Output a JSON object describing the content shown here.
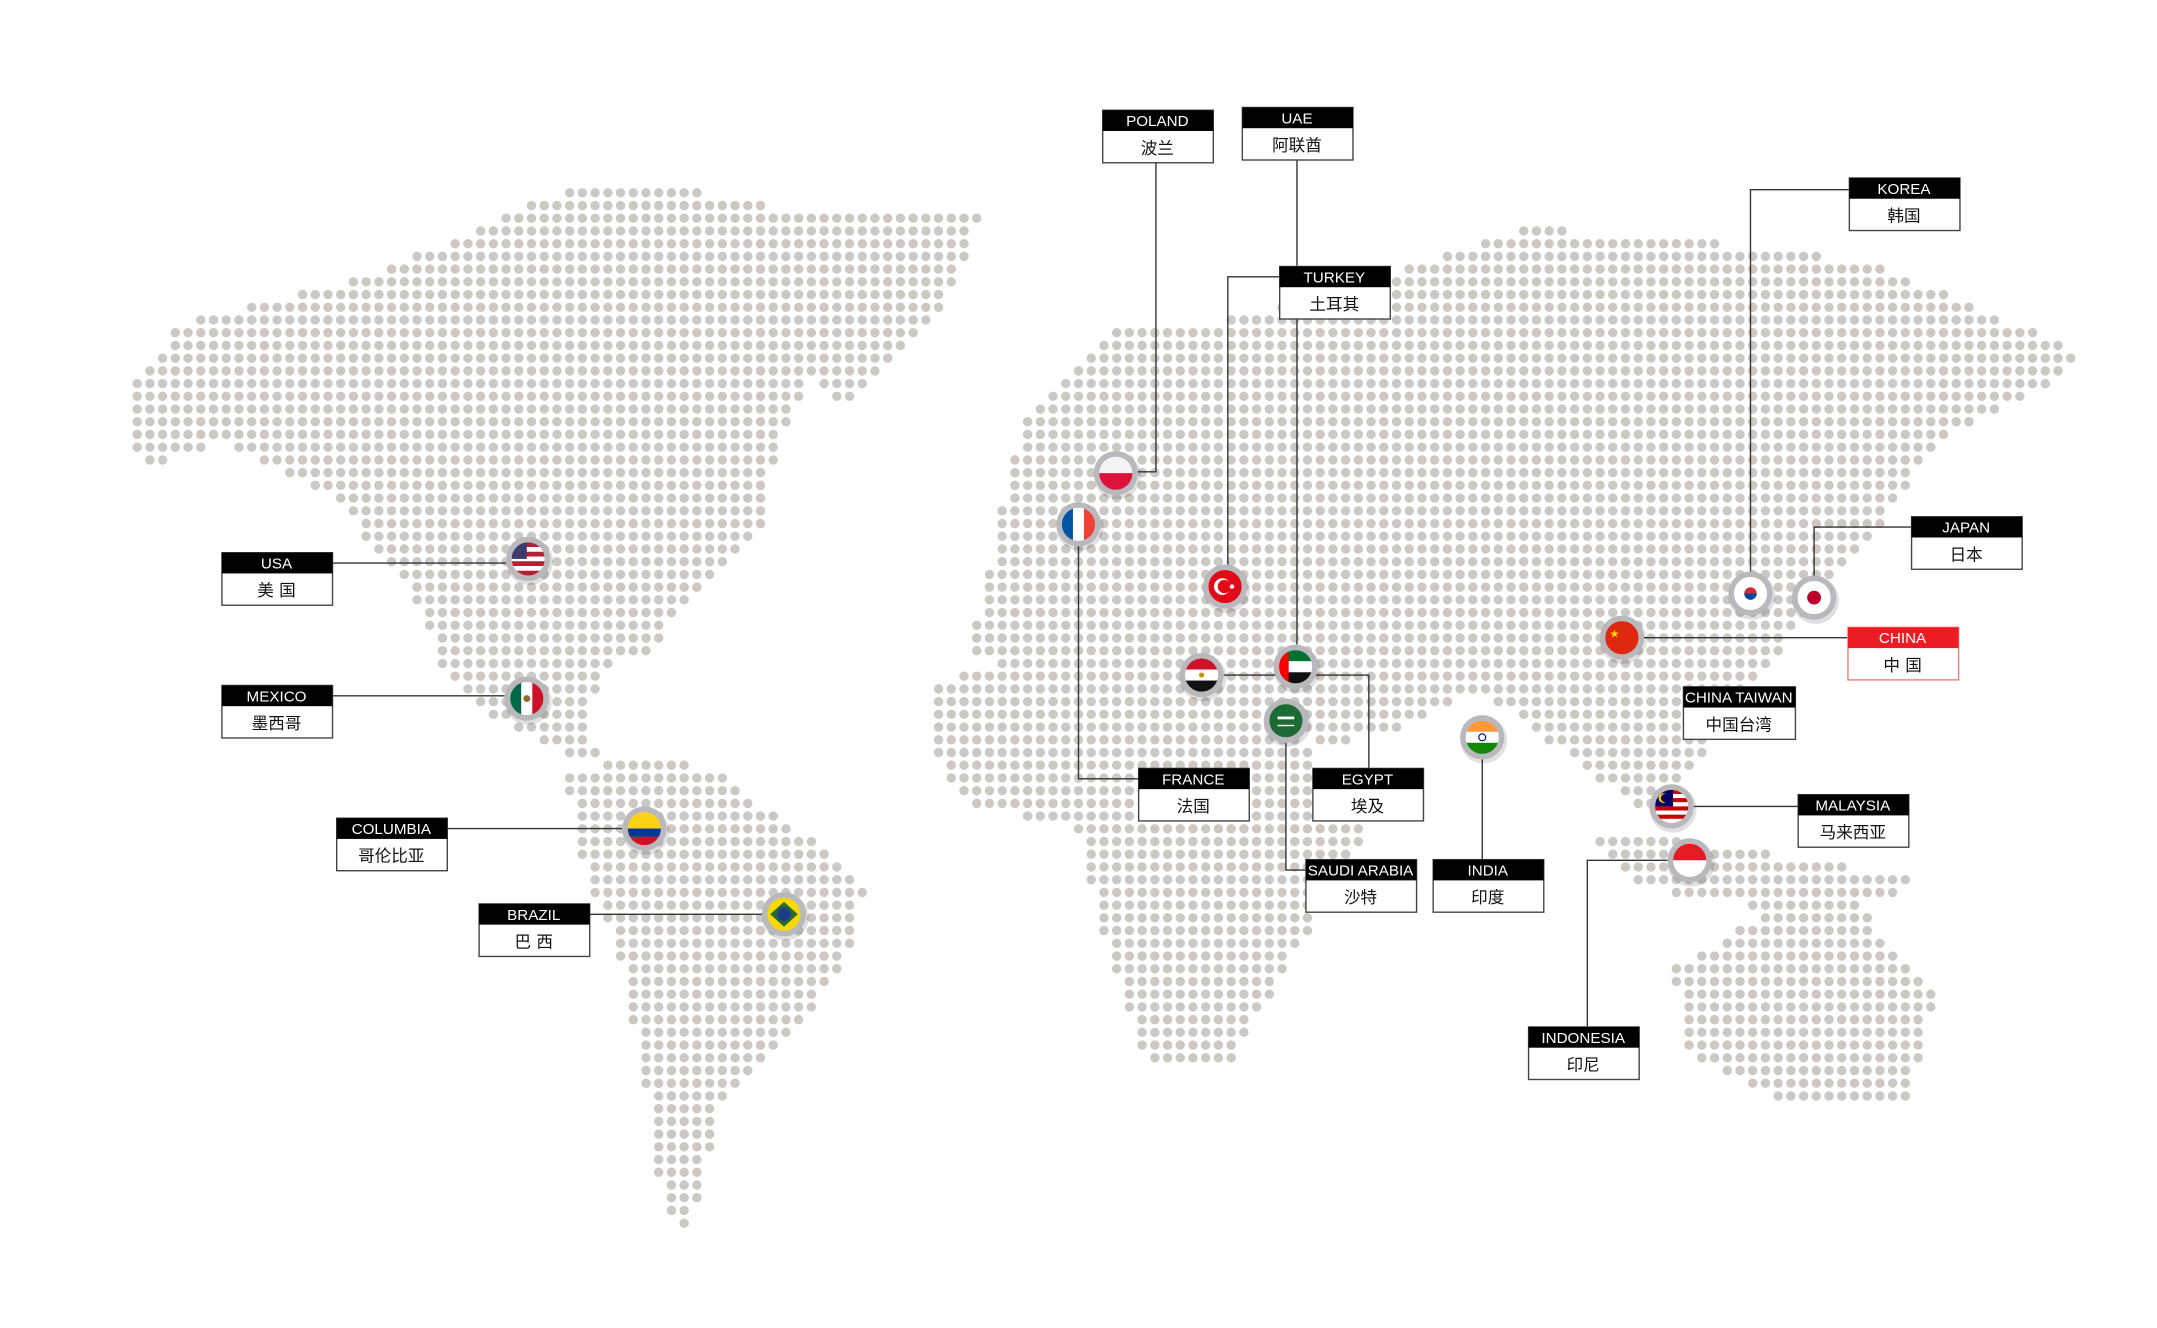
{
  "map": {
    "dot_color": "#ccc8c4",
    "line_color": "#333333",
    "highlight_color": "#ed1c24",
    "locations": [
      {
        "id": "usa",
        "name_en": "USA",
        "name_zh": "美 国",
        "flag": "usa-flag-icon"
      },
      {
        "id": "mexico",
        "name_en": "MEXICO",
        "name_zh": "墨西哥",
        "flag": "mexico-flag-icon"
      },
      {
        "id": "columbia",
        "name_en": "COLUMBIA",
        "name_zh": "哥伦比亚",
        "flag": "colombia-flag-icon"
      },
      {
        "id": "brazil",
        "name_en": "BRAZIL",
        "name_zh": "巴 西",
        "flag": "brazil-flag-icon"
      },
      {
        "id": "poland",
        "name_en": "POLAND",
        "name_zh": "波兰",
        "flag": "poland-flag-icon"
      },
      {
        "id": "uae",
        "name_en": "UAE",
        "name_zh": "阿联酋",
        "flag": "uae-flag-icon"
      },
      {
        "id": "turkey",
        "name_en": "TURKEY",
        "name_zh": "土耳其",
        "flag": "turkey-flag-icon"
      },
      {
        "id": "france",
        "name_en": "FRANCE",
        "name_zh": "法国",
        "flag": "france-flag-icon"
      },
      {
        "id": "egypt",
        "name_en": "EGYPT",
        "name_zh": "埃及",
        "flag": "egypt-flag-icon"
      },
      {
        "id": "saudi",
        "name_en": "SAUDI ARABIA",
        "name_zh": "沙特",
        "flag": "saudi-flag-icon"
      },
      {
        "id": "india",
        "name_en": "INDIA",
        "name_zh": "印度",
        "flag": "india-flag-icon"
      },
      {
        "id": "korea",
        "name_en": "KOREA",
        "name_zh": "韩国",
        "flag": "korea-flag-icon"
      },
      {
        "id": "japan",
        "name_en": "JAPAN",
        "name_zh": "日本",
        "flag": "japan-flag-icon"
      },
      {
        "id": "china",
        "name_en": "CHINA",
        "name_zh": "中 国",
        "flag": "china-flag-icon",
        "highlight": true
      },
      {
        "id": "taiwan",
        "name_en": "CHINA TAIWAN",
        "name_zh": "中国台湾"
      },
      {
        "id": "malaysia",
        "name_en": "MALAYSIA",
        "name_zh": "马来西亚",
        "flag": "malaysia-flag-icon"
      },
      {
        "id": "indonesia",
        "name_en": "INDONESIA",
        "name_zh": "印尼",
        "flag": "indonesia-flag-icon"
      }
    ]
  }
}
